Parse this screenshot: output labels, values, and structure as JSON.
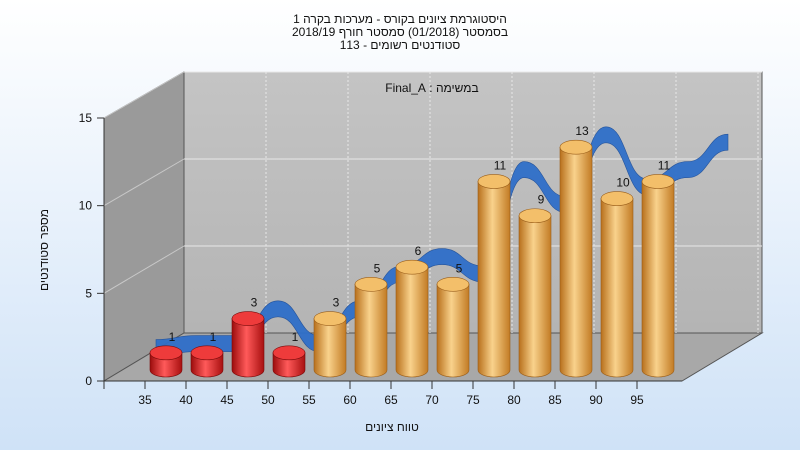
{
  "chart_data": {
    "type": "bar",
    "title_lines": [
      "היסטוגרמת ציונים בקורס - מערכות בקרה 1",
      "בסמסטר  (01/2018)  סמסטר חורף 2018/19",
      "סטודנטים רשומים - 113"
    ],
    "annotation": "במשימה : Final_A",
    "xlabel": "טווח ציונים",
    "ylabel": "מספר סטודנטים",
    "categories": [
      "35",
      "40",
      "45",
      "50",
      "55",
      "60",
      "65",
      "70",
      "75",
      "80",
      "85",
      "90",
      "95"
    ],
    "values": [
      1,
      1,
      3,
      1,
      3,
      5,
      6,
      5,
      11,
      9,
      13,
      10,
      11
    ],
    "bar_colors": [
      "#dd1a1a",
      "#dd1a1a",
      "#dd1a1a",
      "#dd1a1a",
      "#e9a64b",
      "#e9a64b",
      "#e9a64b",
      "#e9a64b",
      "#e9a64b",
      "#e9a64b",
      "#e9a64b",
      "#e9a64b",
      "#e9a64b"
    ],
    "curve_color": "#2f6fc9",
    "ylim": [
      0,
      15
    ],
    "yticks": [
      0,
      5,
      10,
      15
    ],
    "grid": true
  }
}
